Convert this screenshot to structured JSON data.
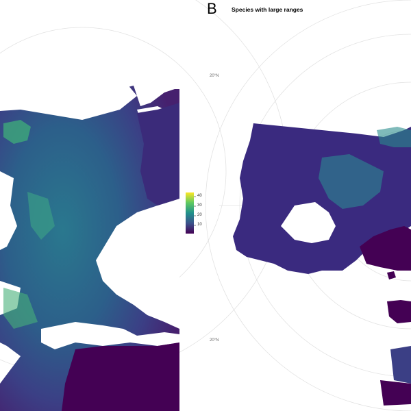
{
  "panel_b": {
    "letter": "B",
    "title": "Species with large ranges",
    "lat_labels": [
      "20°N",
      "20°N"
    ]
  },
  "legend": {
    "ticks": [
      "40",
      "30",
      "20",
      "10"
    ],
    "tick_values": [
      40,
      30,
      20,
      10
    ],
    "range": [
      2,
      45
    ],
    "colormap": [
      "#440154",
      "#3b528b",
      "#21918c",
      "#5ec962",
      "#fde725"
    ]
  },
  "colors": {
    "land_low": "#440154",
    "land_mid": "#2c718e",
    "land_high": "#5ec962",
    "water": "#ffffff",
    "graticule": "#d9d9d9"
  }
}
